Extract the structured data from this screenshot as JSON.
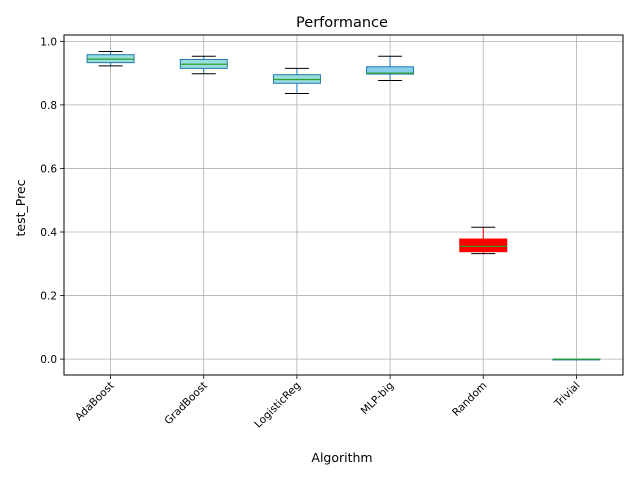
{
  "chart_data": {
    "type": "boxplot",
    "title": "Performance",
    "xlabel": "Algorithm",
    "ylabel": "test_Prec",
    "ylim": [
      -0.05,
      1.02
    ],
    "yticks": [
      0.0,
      0.2,
      0.4,
      0.6,
      0.8,
      1.0
    ],
    "ytick_labels": [
      "0.0",
      "0.2",
      "0.4",
      "0.6",
      "0.8",
      "1.0"
    ],
    "grid": true,
    "categories": [
      "AdaBoost",
      "GradBoost",
      "LogisticReg",
      "MLP-big",
      "Random",
      "Trivial"
    ],
    "boxes": [
      {
        "min": 0.923,
        "q1": 0.933,
        "median": 0.944,
        "q3": 0.958,
        "max": 0.968,
        "fill": "#99dddd",
        "edge": "#1f77b4",
        "median_color": "#2ca02c"
      },
      {
        "min": 0.898,
        "q1": 0.915,
        "median": 0.928,
        "q3": 0.943,
        "max": 0.953,
        "fill": "#99dddd",
        "edge": "#1f77b4",
        "median_color": "#2ca02c"
      },
      {
        "min": 0.836,
        "q1": 0.868,
        "median": 0.88,
        "q3": 0.895,
        "max": 0.915,
        "fill": "#99dddd",
        "edge": "#1f77b4",
        "median_color": "#2ca02c"
      },
      {
        "min": 0.877,
        "q1": 0.897,
        "median": 0.9,
        "q3": 0.92,
        "max": 0.953,
        "fill": "#87ceeb",
        "edge": "#1f77b4",
        "median_color": "#2ca02c"
      },
      {
        "min": 0.332,
        "q1": 0.338,
        "median": 0.355,
        "q3": 0.378,
        "max": 0.415,
        "fill": "#ff0000",
        "edge": "#ff0000",
        "median_color": "#2ca02c"
      },
      {
        "min": 0.0,
        "q1": 0.0,
        "median": 0.0,
        "q3": 0.0,
        "max": 0.0,
        "fill": "#99dddd",
        "edge": "#1f77b4",
        "median_color": "#2ca02c"
      }
    ]
  }
}
